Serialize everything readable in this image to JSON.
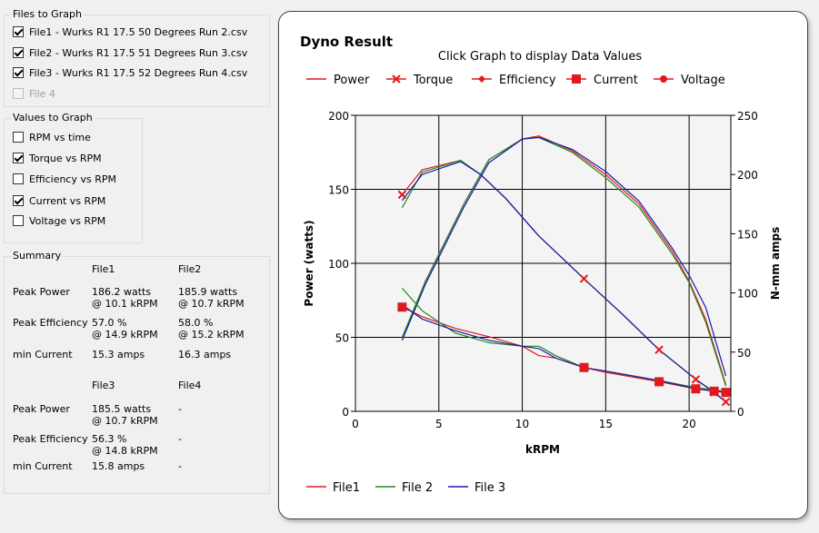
{
  "files_group": {
    "title": "Files to Graph",
    "items": [
      {
        "label": "File1 - Wurks R1 17.5 50 Degrees Run 2.csv",
        "checked": true,
        "enabled": true
      },
      {
        "label": "File2 - Wurks R1 17.5 51 Degrees Run 3.csv",
        "checked": true,
        "enabled": true
      },
      {
        "label": "File3 - Wurks R1 17.5 52 Degrees Run 4.csv",
        "checked": true,
        "enabled": true
      },
      {
        "label": "File 4",
        "checked": false,
        "enabled": false
      }
    ]
  },
  "values_group": {
    "title": "Values to Graph",
    "items": [
      {
        "label": "RPM vs time",
        "checked": false
      },
      {
        "label": "Torque vs RPM",
        "checked": true
      },
      {
        "label": "Efficiency vs RPM",
        "checked": false
      },
      {
        "label": "Current vs RPM",
        "checked": true
      },
      {
        "label": "Voltage vs RPM",
        "checked": false
      }
    ]
  },
  "summary": {
    "title": "Summary",
    "row_labels": {
      "peak_power": "Peak Power",
      "peak_efficiency": "Peak Efficiency",
      "min_current": "min Current"
    },
    "file1": {
      "header": "File1",
      "power": "186.2 watts",
      "power_rpm": "@ 10.1 kRPM",
      "eff": "57.0 %",
      "eff_rpm": "@ 14.9 kRPM",
      "current": "15.3 amps"
    },
    "file2": {
      "header": "File2",
      "power": "185.9 watts",
      "power_rpm": "@ 10.7 kRPM",
      "eff": "58.0 %",
      "eff_rpm": "@ 15.2 kRPM",
      "current": "16.3 amps"
    },
    "file3": {
      "header": "File3",
      "power": "185.5 watts",
      "power_rpm": "@ 10.7 kRPM",
      "eff": "56.3 %",
      "eff_rpm": "@ 14.8 kRPM",
      "current": "15.8 amps"
    },
    "file4": {
      "header": "File4",
      "power": "-",
      "eff": "-",
      "current": "-"
    }
  },
  "chart_data": {
    "type": "line",
    "title": "Dyno Result",
    "subtitle": "Click Graph to display Data Values",
    "xlabel": "kRPM",
    "ylabel": "Power (watts)",
    "y2label": "N-mm amps",
    "xlim": [
      0,
      22.5
    ],
    "xticks": [
      0,
      5,
      10,
      15,
      20
    ],
    "ylim": [
      0,
      200
    ],
    "yticks": [
      0,
      50,
      100,
      150,
      200
    ],
    "y2lim": [
      0,
      250
    ],
    "y2ticks": [
      0,
      50,
      100,
      150,
      200,
      250
    ],
    "grid": true,
    "measure_legend": [
      {
        "name": "Power",
        "marker": "none"
      },
      {
        "name": "Torque",
        "marker": "x"
      },
      {
        "name": "Efficiency",
        "marker": "diamond"
      },
      {
        "name": "Current",
        "marker": "square"
      },
      {
        "name": "Voltage",
        "marker": "circle"
      }
    ],
    "file_legend": [
      {
        "name": "File1",
        "color": "#e0191f"
      },
      {
        "name": "File 2",
        "color": "#1e8a1e"
      },
      {
        "name": "File 3",
        "color": "#1a1aa8"
      }
    ],
    "series": [
      {
        "file": "File1",
        "measure": "Power",
        "axis": "left",
        "x": [
          2.8,
          4.2,
          6.5,
          8,
          10,
          11,
          13,
          15,
          17,
          18,
          19,
          20,
          21,
          22.2
        ],
        "y": [
          48,
          88,
          140,
          170,
          184,
          186,
          176,
          160,
          140,
          124,
          108,
          88,
          62,
          18
        ]
      },
      {
        "file": "File2",
        "measure": "Power",
        "axis": "left",
        "x": [
          2.8,
          4.2,
          6.5,
          8,
          10,
          11,
          13,
          15,
          17,
          18,
          19,
          20,
          21,
          22.2
        ],
        "y": [
          50,
          88,
          140,
          170,
          184,
          185,
          175,
          158,
          138,
          122,
          106,
          87,
          60,
          17
        ]
      },
      {
        "file": "File3",
        "measure": "Power",
        "axis": "left",
        "x": [
          2.8,
          4.2,
          6.5,
          8,
          10,
          11,
          13,
          15,
          17,
          18,
          19,
          20,
          21,
          22.2
        ],
        "y": [
          48,
          86,
          138,
          168,
          184,
          185,
          177,
          162,
          142,
          126,
          110,
          92,
          70,
          24
        ]
      },
      {
        "file": "File1",
        "measure": "Torque",
        "axis": "right",
        "x": [
          2.8,
          4,
          6.3,
          7.5,
          9,
          11,
          13.7,
          16,
          18.2,
          20.4,
          21.5,
          22.2
        ],
        "y": [
          183,
          204,
          212,
          200,
          180,
          148,
          112,
          82,
          52,
          27,
          16,
          8
        ],
        "markers": [
          [
            2.8,
            183
          ],
          [
            13.7,
            112
          ],
          [
            18.2,
            52
          ],
          [
            20.4,
            27
          ],
          [
            21.5,
            16
          ],
          [
            22.2,
            8
          ]
        ]
      },
      {
        "file": "File2",
        "measure": "Torque",
        "axis": "right",
        "x": [
          2.8,
          4,
          6.3,
          7.5,
          9,
          11,
          13.7,
          16,
          18.2,
          20.4,
          21.5,
          22.2
        ],
        "y": [
          172,
          202,
          212,
          200,
          180,
          148,
          112,
          82,
          52,
          27,
          16,
          8
        ]
      },
      {
        "file": "File3",
        "measure": "Torque",
        "axis": "right",
        "x": [
          2.8,
          4,
          6.3,
          7.5,
          9,
          11,
          13.7,
          16,
          18.2,
          20.4,
          21.5,
          22.2
        ],
        "y": [
          178,
          200,
          211,
          200,
          180,
          148,
          112,
          82,
          52,
          27,
          16,
          8
        ]
      },
      {
        "file": "File1",
        "measure": "Current",
        "axis": "right",
        "x": [
          2.8,
          4,
          6,
          8,
          10,
          11,
          12,
          13.7,
          15,
          18.2,
          20.4,
          21.5,
          22.2
        ],
        "y": [
          88,
          80,
          70,
          63,
          55,
          47,
          45,
          37,
          33,
          25,
          19,
          17,
          16
        ],
        "markers": [
          [
            2.8,
            88
          ],
          [
            13.7,
            37
          ],
          [
            18.2,
            25
          ],
          [
            20.4,
            19
          ],
          [
            21.5,
            17
          ],
          [
            22.2,
            16
          ]
        ]
      },
      {
        "file": "File2",
        "measure": "Current",
        "axis": "right",
        "x": [
          2.8,
          4,
          6,
          8,
          10,
          11,
          12,
          13.7,
          15,
          18.2,
          20.4,
          21.5,
          22.2
        ],
        "y": [
          104,
          85,
          66,
          58,
          55,
          55,
          47,
          37,
          34,
          26,
          20,
          18,
          17
        ]
      },
      {
        "file": "File3",
        "measure": "Current",
        "axis": "right",
        "x": [
          2.8,
          4,
          6,
          8,
          10,
          11,
          12,
          13.7,
          15,
          18.2,
          20.4,
          21.5,
          22.2
        ],
        "y": [
          90,
          78,
          68,
          60,
          55,
          53,
          45,
          37,
          34,
          26,
          19,
          17,
          16
        ]
      }
    ]
  }
}
